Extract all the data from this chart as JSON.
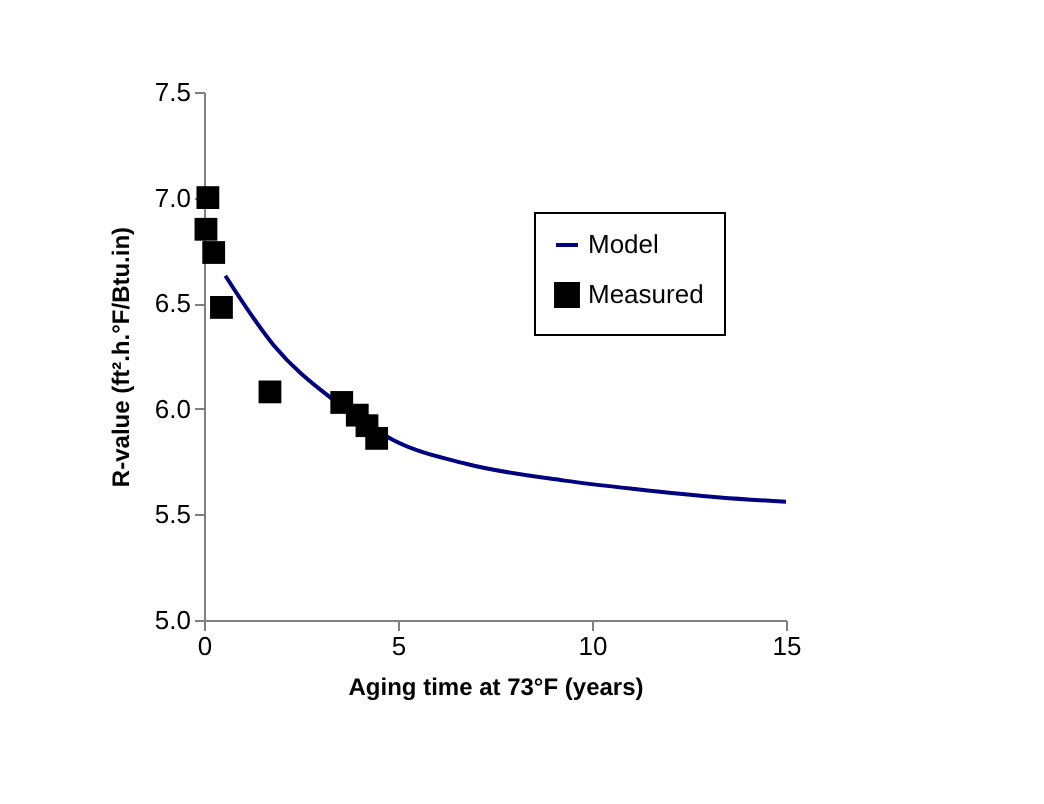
{
  "chart_data": {
    "type": "scatter",
    "xlabel": "Aging time at 73°F (years)",
    "ylabel": "R-value (ft².h.°F/Btu.in)",
    "xlim": [
      0,
      15
    ],
    "xticks": [
      0,
      5,
      10,
      15
    ],
    "ylim": [
      5.0,
      7.5
    ],
    "yticks": [
      {
        "value": 5,
        "label": "5.0"
      },
      {
        "value": 5.5,
        "label": "5.5"
      },
      {
        "value": 6,
        "label": "6.0"
      },
      {
        "value": 6.5,
        "label": "6.5"
      },
      {
        "value": 7,
        "label": "7.0"
      },
      {
        "value": 7.5,
        "label": "7.5"
      }
    ],
    "grid": false,
    "legend": "top right",
    "series": [
      {
        "name": "Model",
        "type": "line",
        "color": "#000080",
        "marker": "none",
        "x": [
          0.55,
          1.8,
          3.35,
          4.9,
          6.75,
          9.3,
          11.1,
          13.3,
          15
        ],
        "values": [
          6.63,
          6.3,
          6.04,
          5.85,
          5.74,
          5.66,
          5.62,
          5.58,
          5.56
        ]
      },
      {
        "name": "Measured",
        "color": "#000000",
        "marker": "square",
        "x": [
          0.1,
          0.05,
          0.25,
          0.45,
          1.7,
          3.55,
          3.95,
          4.2,
          4.45
        ],
        "values": [
          7.0,
          6.85,
          6.74,
          6.48,
          6.08,
          6.03,
          5.97,
          5.92,
          5.86
        ]
      }
    ]
  }
}
